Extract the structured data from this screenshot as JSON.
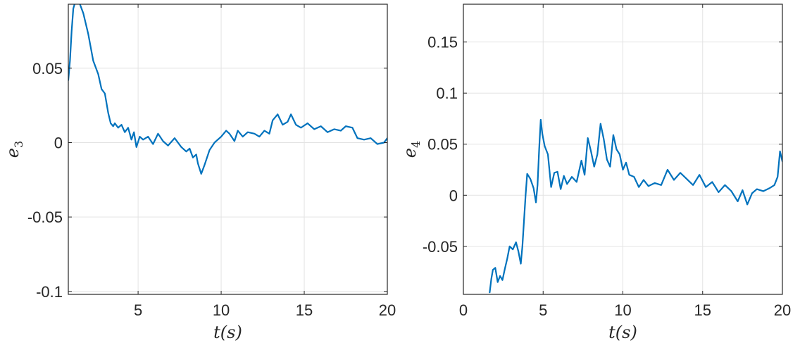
{
  "chart_data": [
    {
      "type": "line",
      "title": "",
      "xlabel": "t(s)",
      "ylabel": "e",
      "ylabel_subscript": "3",
      "xlim": [
        0.8,
        20
      ],
      "ylim": [
        -0.102,
        0.093
      ],
      "xticks": [
        5,
        10,
        15,
        20
      ],
      "yticks": [
        -0.1,
        -0.05,
        0,
        0.05
      ],
      "xtick_labels": [
        "5",
        "10",
        "15",
        "20"
      ],
      "ytick_labels": [
        "-0.1",
        "-0.05",
        "0",
        "0.05"
      ],
      "grid": true,
      "color": "#0072bd",
      "series": [
        {
          "x": [
            0.8,
            0.9,
            1.0,
            1.1,
            1.2,
            1.3,
            1.5,
            1.7,
            2.0,
            2.3,
            2.6,
            2.8,
            3.0,
            3.2,
            3.35,
            3.5,
            3.6,
            3.8,
            4.0,
            4.2,
            4.4,
            4.6,
            4.75,
            4.9,
            5.1,
            5.3,
            5.6,
            5.9,
            6.2,
            6.5,
            6.8,
            7.2,
            7.6,
            7.9,
            8.1,
            8.3,
            8.5,
            8.6,
            8.8,
            9.0,
            9.3,
            9.6,
            10.0,
            10.3,
            10.5,
            10.8,
            11.0,
            11.3,
            11.6,
            12.0,
            12.3,
            12.6,
            12.9,
            13.1,
            13.4,
            13.7,
            14.0,
            14.2,
            14.5,
            14.8,
            15.2,
            15.6,
            16.0,
            16.4,
            16.8,
            17.2,
            17.5,
            17.9,
            18.2,
            18.6,
            19.0,
            19.4,
            19.8,
            20.0
          ],
          "y": [
            0.042,
            0.055,
            0.075,
            0.09,
            0.094,
            0.096,
            0.093,
            0.087,
            0.073,
            0.055,
            0.046,
            0.036,
            0.033,
            0.02,
            0.013,
            0.011,
            0.013,
            0.01,
            0.012,
            0.007,
            0.01,
            0.002,
            0.007,
            -0.003,
            0.004,
            0.002,
            0.004,
            -0.001,
            0.006,
            0.001,
            -0.002,
            0.003,
            -0.003,
            -0.006,
            -0.004,
            -0.01,
            -0.008,
            -0.014,
            -0.021,
            -0.015,
            -0.005,
            0.0,
            0.004,
            0.008,
            0.006,
            0.001,
            0.008,
            0.004,
            0.007,
            0.006,
            0.004,
            0.008,
            0.006,
            0.015,
            0.019,
            0.012,
            0.014,
            0.019,
            0.012,
            0.01,
            0.013,
            0.009,
            0.011,
            0.007,
            0.009,
            0.008,
            0.011,
            0.01,
            0.003,
            0.002,
            0.003,
            -0.001,
            0.0,
            0.003
          ]
        }
      ]
    },
    {
      "type": "line",
      "title": "",
      "xlabel": "t(s)",
      "ylabel": "e",
      "ylabel_subscript": "4",
      "xlim": [
        0,
        20
      ],
      "ylim": [
        -0.097,
        0.187
      ],
      "xticks": [
        0,
        5,
        10,
        15,
        20
      ],
      "yticks": [
        -0.05,
        0,
        0.05,
        0.1,
        0.15
      ],
      "xtick_labels": [
        "0",
        "5",
        "10",
        "15",
        "20"
      ],
      "ytick_labels": [
        "-0.05",
        "0",
        "0.05",
        "0.1",
        "0.15"
      ],
      "grid": true,
      "color": "#0072bd",
      "series": [
        {
          "x": [
            1.65,
            1.75,
            1.85,
            2.0,
            2.15,
            2.3,
            2.45,
            2.6,
            2.75,
            2.9,
            3.1,
            3.3,
            3.45,
            3.6,
            3.7,
            3.8,
            3.9,
            4.0,
            4.2,
            4.4,
            4.55,
            4.65,
            4.75,
            4.85,
            4.95,
            5.1,
            5.3,
            5.5,
            5.7,
            5.9,
            6.1,
            6.3,
            6.5,
            6.8,
            7.1,
            7.4,
            7.6,
            7.8,
            8.0,
            8.2,
            8.4,
            8.6,
            8.8,
            9.0,
            9.2,
            9.4,
            9.6,
            9.8,
            10.0,
            10.2,
            10.4,
            10.7,
            11.0,
            11.3,
            11.6,
            12.0,
            12.4,
            12.8,
            13.2,
            13.6,
            14.0,
            14.4,
            14.8,
            15.2,
            15.6,
            16.0,
            16.4,
            16.8,
            17.2,
            17.5,
            17.8,
            18.1,
            18.4,
            18.8,
            19.2,
            19.5,
            19.7,
            19.85,
            20.0
          ],
          "y": [
            -0.095,
            -0.082,
            -0.073,
            -0.071,
            -0.085,
            -0.079,
            -0.083,
            -0.072,
            -0.062,
            -0.05,
            -0.053,
            -0.046,
            -0.055,
            -0.067,
            -0.05,
            -0.025,
            0.0,
            0.021,
            0.016,
            0.007,
            -0.007,
            0.01,
            0.045,
            0.074,
            0.06,
            0.048,
            0.04,
            0.008,
            0.022,
            0.023,
            0.006,
            0.019,
            0.011,
            0.018,
            0.013,
            0.034,
            0.02,
            0.056,
            0.043,
            0.028,
            0.04,
            0.07,
            0.055,
            0.035,
            0.028,
            0.059,
            0.045,
            0.04,
            0.025,
            0.032,
            0.02,
            0.018,
            0.008,
            0.015,
            0.009,
            0.012,
            0.01,
            0.025,
            0.015,
            0.022,
            0.016,
            0.01,
            0.02,
            0.008,
            0.013,
            0.003,
            0.01,
            0.004,
            -0.006,
            0.005,
            -0.009,
            0.002,
            0.006,
            0.004,
            0.007,
            0.01,
            0.018,
            0.043,
            0.033
          ]
        }
      ]
    }
  ]
}
